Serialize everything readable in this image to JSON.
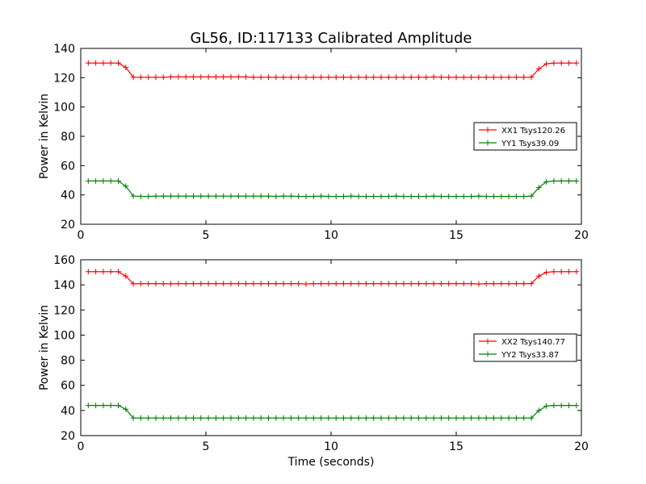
{
  "figure_title": "GL56, ID:117133 Calibrated Amplitude",
  "chart_data": [
    {
      "type": "line",
      "title": "GL56, ID:117133 Calibrated Amplitude",
      "xlabel": "",
      "ylabel": "Power in Kelvin",
      "xlim": [
        0,
        20
      ],
      "ylim": [
        20,
        140
      ],
      "xticks": [
        0,
        5,
        10,
        15,
        20
      ],
      "yticks": [
        20,
        40,
        60,
        80,
        100,
        120,
        140
      ],
      "grid": false,
      "legend_position": "right",
      "x": [
        0.3,
        0.6,
        0.9,
        1.2,
        1.5,
        1.8,
        2.1,
        2.4,
        2.7,
        3.0,
        3.3,
        3.6,
        3.9,
        4.2,
        4.5,
        4.8,
        5.1,
        5.4,
        5.7,
        6.0,
        6.3,
        6.6,
        6.9,
        7.2,
        7.5,
        7.8,
        8.1,
        8.4,
        8.7,
        9.0,
        9.3,
        9.6,
        9.9,
        10.2,
        10.5,
        10.8,
        11.1,
        11.4,
        11.7,
        12.0,
        12.3,
        12.6,
        12.9,
        13.2,
        13.5,
        13.8,
        14.1,
        14.4,
        14.7,
        15.0,
        15.3,
        15.6,
        15.9,
        16.2,
        16.5,
        16.8,
        17.1,
        17.4,
        17.7,
        18.0,
        18.3,
        18.6,
        18.9,
        19.2,
        19.5,
        19.8
      ],
      "series": [
        {
          "name": "XX1 Tsys120.26",
          "color": "#ff0000",
          "values": [
            130,
            130,
            130,
            130,
            130,
            127,
            120.3,
            120.3,
            120.3,
            120.3,
            120.3,
            120.5,
            120.5,
            120.5,
            120.5,
            120.5,
            120.5,
            120.5,
            120.5,
            120.5,
            120.5,
            120.5,
            120.3,
            120.3,
            120.3,
            120.3,
            120.3,
            120.3,
            120.3,
            120.3,
            120.3,
            120.3,
            120.3,
            120.3,
            120.3,
            120.3,
            120.3,
            120.3,
            120.3,
            120.3,
            120.3,
            120.3,
            120.3,
            120.3,
            120.3,
            120.3,
            120.5,
            120.3,
            120.3,
            120.3,
            120.3,
            120.3,
            120.3,
            120.3,
            120.3,
            120.3,
            120.3,
            120.3,
            120.3,
            120.3,
            126,
            129.5,
            130,
            130,
            130,
            130
          ]
        },
        {
          "name": "YY1 Tsys39.09",
          "color": "#008000",
          "values": [
            49.5,
            49.5,
            49.5,
            49.5,
            49.5,
            46,
            39.2,
            39,
            39,
            39.2,
            39.2,
            39.2,
            39.2,
            39.2,
            39.2,
            39.2,
            39.2,
            39.2,
            39.2,
            39.2,
            39.2,
            39.2,
            39.2,
            39.2,
            39.2,
            39,
            39.2,
            39.2,
            39,
            39,
            39,
            39.2,
            39,
            39,
            39,
            39.2,
            39,
            39,
            39,
            39,
            39,
            39.2,
            39,
            39,
            39,
            39,
            39.2,
            39,
            39,
            39,
            39,
            39,
            39.2,
            39,
            39,
            39,
            39,
            39,
            39,
            39.2,
            45,
            49,
            49.5,
            49.5,
            49.5,
            49.5
          ]
        }
      ]
    },
    {
      "type": "line",
      "title": "",
      "xlabel": "Time (seconds)",
      "ylabel": "Power in Kelvin",
      "xlim": [
        0,
        20
      ],
      "ylim": [
        20,
        160
      ],
      "xticks": [
        0,
        5,
        10,
        15,
        20
      ],
      "yticks": [
        20,
        40,
        60,
        80,
        100,
        120,
        140,
        160
      ],
      "grid": false,
      "legend_position": "right",
      "x": [
        0.3,
        0.6,
        0.9,
        1.2,
        1.5,
        1.8,
        2.1,
        2.4,
        2.7,
        3.0,
        3.3,
        3.6,
        3.9,
        4.2,
        4.5,
        4.8,
        5.1,
        5.4,
        5.7,
        6.0,
        6.3,
        6.6,
        6.9,
        7.2,
        7.5,
        7.8,
        8.1,
        8.4,
        8.7,
        9.0,
        9.3,
        9.6,
        9.9,
        10.2,
        10.5,
        10.8,
        11.1,
        11.4,
        11.7,
        12.0,
        12.3,
        12.6,
        12.9,
        13.2,
        13.5,
        13.8,
        14.1,
        14.4,
        14.7,
        15.0,
        15.3,
        15.6,
        15.9,
        16.2,
        16.5,
        16.8,
        17.1,
        17.4,
        17.7,
        18.0,
        18.3,
        18.6,
        18.9,
        19.2,
        19.5,
        19.8
      ],
      "series": [
        {
          "name": "XX2 Tsys140.77",
          "color": "#ff0000",
          "values": [
            150.5,
            150.5,
            150.5,
            150.5,
            150.5,
            147,
            140.8,
            141,
            141,
            141,
            141,
            140.8,
            141,
            141,
            141,
            141,
            141,
            141,
            141,
            141,
            141,
            141,
            141,
            141,
            141,
            141,
            141,
            141,
            141,
            140.7,
            141,
            141,
            141,
            141,
            141,
            141,
            141,
            141,
            141,
            141,
            141,
            141,
            141,
            141,
            141,
            141,
            141,
            141,
            141,
            141,
            141,
            141,
            140.7,
            141,
            141,
            141,
            141,
            141,
            141,
            141,
            147,
            150,
            150.5,
            150.5,
            150.5,
            150.5
          ]
        },
        {
          "name": "YY2 Tsys33.87",
          "color": "#008000",
          "values": [
            44,
            44,
            44,
            44,
            44,
            41,
            34,
            34,
            34,
            34,
            34,
            34,
            34,
            34,
            34,
            34,
            34,
            34,
            34,
            34,
            34,
            34,
            34,
            34,
            34,
            34,
            34,
            34,
            34,
            34,
            34,
            34,
            34,
            34,
            34,
            34,
            34,
            34,
            34,
            34,
            34,
            34,
            34,
            34,
            34,
            34,
            34,
            34,
            34,
            34,
            34,
            34,
            34,
            34,
            34,
            34,
            34,
            34,
            34,
            34,
            40,
            43.5,
            44,
            44,
            44,
            44
          ]
        }
      ]
    }
  ]
}
